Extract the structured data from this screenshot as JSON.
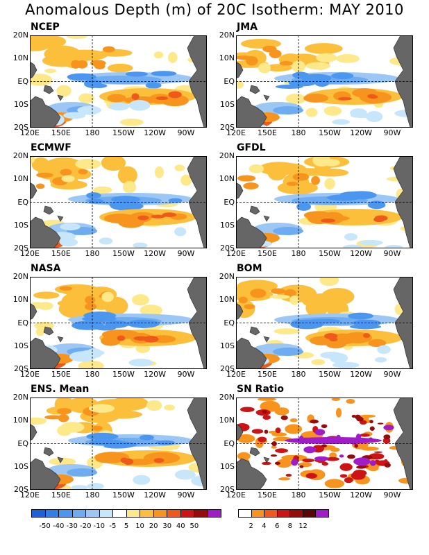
{
  "title": "Anomalous Depth (m) of 20C Isotherm: MAY 2010",
  "chart_data": {
    "type": "heatmap",
    "title": "Anomalous Depth (m) of 20C Isotherm: MAY 2010",
    "xticks": [
      "120E",
      "150E",
      "180",
      "150W",
      "120W",
      "90W"
    ],
    "yticks": [
      "20N",
      "10N",
      "EQ",
      "10S",
      "20S"
    ],
    "panels": [
      {
        "name": "NCEP"
      },
      {
        "name": "JMA"
      },
      {
        "name": "ECMWF"
      },
      {
        "name": "GFDL"
      },
      {
        "name": "NASA"
      },
      {
        "name": "BOM"
      },
      {
        "name": "ENS. Mean"
      },
      {
        "name": "SN Ratio"
      }
    ],
    "anomaly_colorbar": {
      "labels": [
        "-50",
        "-40",
        "-30",
        "-20",
        "-10",
        "-5",
        "5",
        "10",
        "20",
        "30",
        "40",
        "50"
      ],
      "colors": [
        "#1c62d6",
        "#2f7fe6",
        "#4b96ee",
        "#6eacf2",
        "#9cc7f5",
        "#c8e6fa",
        "#ffffff",
        "#fde98a",
        "#fbbf3c",
        "#f7941d",
        "#ee5a1a",
        "#cc1414",
        "#960c0c",
        "#a01cc8"
      ]
    },
    "sn_colorbar": {
      "labels": [
        "2",
        "4",
        "6",
        "8",
        "12"
      ],
      "colors": [
        "#ffffff",
        "#f7941d",
        "#ee5a1a",
        "#cc1414",
        "#960c0c",
        "#5a0606",
        "#a01cc8"
      ]
    }
  }
}
